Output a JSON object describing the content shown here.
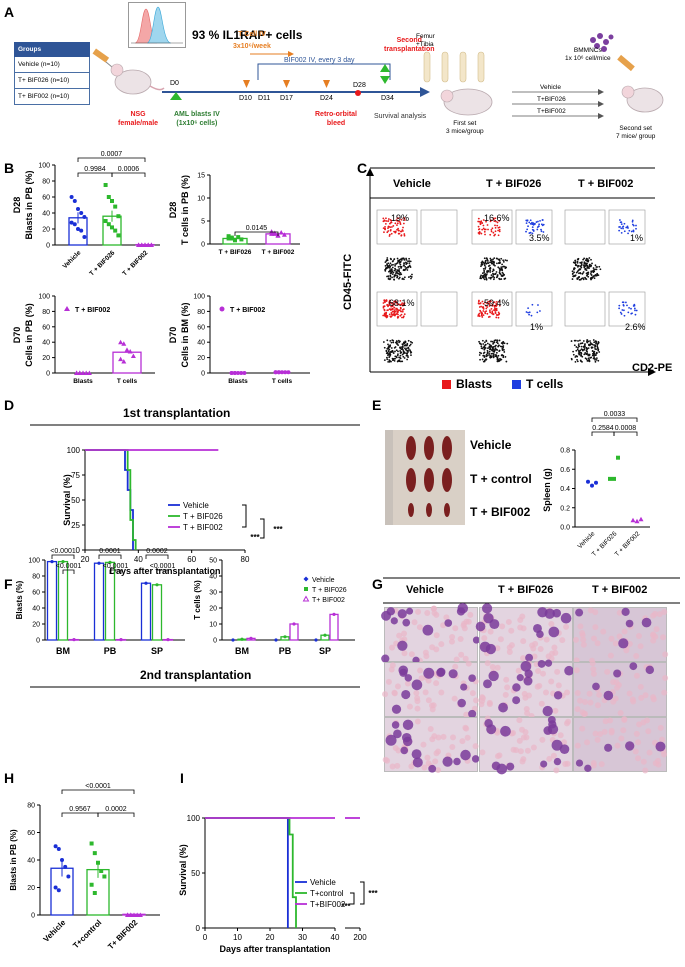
{
  "panels": {
    "A": {
      "letter": "A",
      "headline": "93 % IL1RAP+ cells",
      "groups_header": "Groups",
      "groups": [
        "Vehicle (n=10)",
        "T+ BIF026 (n=10)",
        "T+ BIF002 (n=10)"
      ],
      "mouse_label_1": "NSG",
      "mouse_label_2": "female/male",
      "aml_label_1": "AML blasts IV",
      "aml_label_2": "(1x10⁶ cells)",
      "tcell_label_1": "T Cell IV",
      "tcell_label_2": "3x10⁶/week",
      "bif_label": "BIF002 IV, every 3 day",
      "second_tx_1": "Second",
      "second_tx_2": "transplantation",
      "retro_1": "Retro-orbital",
      "retro_2": "bleed",
      "survival_analysis": "Survival analysis",
      "days": [
        "D0",
        "D10",
        "D11",
        "D17",
        "D24",
        "D28",
        "D34"
      ],
      "femur_1": "Femur",
      "femur_2": "+Tibia",
      "first_set_1": "First set",
      "first_set_2": "3 mice/group",
      "bmmnc_1": "BMMNCs",
      "bmmnc_2": "1x 10⁶ cell/mice",
      "arms": [
        "Vehicle",
        "T+BIF026",
        "T+BIF002"
      ],
      "second_set_1": "Second set",
      "second_set_2": "7 mice/ group"
    },
    "B": {
      "letter": "B"
    },
    "C": {
      "letter": "C"
    },
    "D": {
      "letter": "D"
    },
    "E": {
      "letter": "E"
    },
    "F": {
      "letter": "F"
    },
    "G": {
      "letter": "G"
    },
    "H": {
      "letter": "H"
    },
    "I": {
      "letter": "I"
    }
  },
  "second_transplant_heading": "2nd transplantation",
  "first_transplant_heading": "1st transplantation",
  "flow": {
    "columns": [
      "Vehicle",
      "T + BIF026",
      "T + BIF002"
    ],
    "row1_pcts": [
      "19%",
      "16.6%",
      "3.5%",
      "1%"
    ],
    "row2_pcts": [
      "68.1%",
      "59.4%",
      "1%",
      "2.6%"
    ],
    "yaxis": "CD45-FITC",
    "xaxis": "CD2-PE",
    "legend_blasts": "Blasts",
    "legend_tcells": "T cells",
    "blast_color": "#e8191b",
    "tcell_color": "#1f3ee0"
  },
  "spleen_photo": {
    "labels": [
      "Vehicle",
      "T + control",
      "T + BIF002"
    ]
  },
  "histology": {
    "columns": [
      "Vehicle",
      "T + BIF026",
      "T + BIF002"
    ]
  },
  "colors": {
    "vehicle": "#1a2fd6",
    "bif026": "#2db82d",
    "bif002": "#b72fd6"
  },
  "chart_data": [
    {
      "id": "B1",
      "type": "bar",
      "ylabel": "D28\nBlasts in PB (%)",
      "categories": [
        "Vehicle",
        "T + BIF026",
        "T + BIF002"
      ],
      "values": [
        34,
        36,
        0.5
      ],
      "errors": [
        7,
        7,
        0.3
      ],
      "points": [
        [
          60,
          55,
          45,
          40,
          35,
          28,
          26,
          20,
          18,
          10
        ],
        [
          75,
          60,
          55,
          48,
          36,
          30,
          26,
          22,
          18,
          12
        ],
        [
          0,
          0,
          0,
          0,
          0,
          0,
          0,
          0,
          0,
          0
        ]
      ],
      "ylim": [
        0,
        100
      ],
      "yticks": [
        0,
        20,
        40,
        60,
        80,
        100
      ],
      "pvalues": [
        "0.0007",
        "0.9984",
        "0.0006"
      ]
    },
    {
      "id": "B2",
      "type": "bar",
      "ylabel": "D28\nT cells in PB (%)",
      "categories": [
        "T + BIF026",
        "T + BIF002"
      ],
      "values": [
        1.2,
        2.2
      ],
      "errors": [
        0.2,
        0.3
      ],
      "ylim": [
        0,
        15
      ],
      "yticks": [
        0,
        5,
        10,
        15
      ],
      "pvalues": [
        "0.0145"
      ]
    },
    {
      "id": "B3",
      "type": "bar",
      "ylabel": "D70\nCells in PB (%)",
      "categories": [
        "Blasts",
        "T cells"
      ],
      "values": [
        0,
        27
      ],
      "errors": [
        0,
        6
      ],
      "ylim": [
        0,
        100
      ],
      "yticks": [
        0,
        20,
        40,
        60,
        80,
        100
      ],
      "legend": [
        "T + BIF002"
      ]
    },
    {
      "id": "B4",
      "type": "bar",
      "ylabel": "D70\nCells in BM (%)",
      "categories": [
        "Blasts",
        "T cells"
      ],
      "values": [
        0,
        1
      ],
      "errors": [
        0,
        0.3
      ],
      "ylim": [
        0,
        100
      ],
      "yticks": [
        0,
        20,
        40,
        60,
        80,
        100
      ],
      "legend": [
        "T + BIF002"
      ]
    },
    {
      "id": "D",
      "type": "line",
      "title": "1st transplantation",
      "xlabel": "Days after transplantation",
      "ylabel": "Survival (%)",
      "xlim": [
        20,
        80
      ],
      "ylim": [
        0,
        100
      ],
      "xticks": [
        20,
        40,
        60,
        80
      ],
      "yticks": [
        0,
        25,
        50,
        75,
        100
      ],
      "series": [
        {
          "name": "Vehicle",
          "steps": [
            [
              20,
              100
            ],
            [
              35,
              100
            ],
            [
              35,
              80
            ],
            [
              36,
              80
            ],
            [
              36,
              60
            ],
            [
              37,
              60
            ],
            [
              37,
              40
            ],
            [
              38,
              40
            ],
            [
              38,
              0
            ]
          ]
        },
        {
          "name": "T + BIF026",
          "steps": [
            [
              20,
              100
            ],
            [
              36,
              100
            ],
            [
              36,
              80
            ],
            [
              37,
              80
            ],
            [
              37,
              30
            ],
            [
              38,
              30
            ],
            [
              38,
              10
            ],
            [
              39,
              10
            ],
            [
              39,
              0
            ]
          ]
        },
        {
          "name": "T + BIF002",
          "steps": [
            [
              20,
              100
            ],
            [
              70,
              100
            ]
          ]
        }
      ],
      "sig": [
        "***",
        "***"
      ]
    },
    {
      "id": "E",
      "type": "scatter",
      "ylabel": "Spleen (g)",
      "categories": [
        "Vehicle",
        "T + BIF026",
        "T + BIF002"
      ],
      "points": [
        [
          0.47,
          0.43,
          0.46
        ],
        [
          0.5,
          0.5,
          0.72
        ],
        [
          0.07,
          0.06,
          0.08
        ]
      ],
      "ylim": [
        0,
        0.8
      ],
      "yticks": [
        0.0,
        0.2,
        0.4,
        0.6,
        0.8
      ],
      "pvalues": [
        "0.0033",
        "0.2584",
        "0.0008"
      ]
    },
    {
      "id": "F1",
      "type": "bar",
      "ylabel": "Blasts (%)",
      "categories": [
        "BM",
        "PB",
        "SP"
      ],
      "series": [
        {
          "name": "Vehicle",
          "values": [
            98,
            96,
            71
          ]
        },
        {
          "name": "T + BIF026",
          "values": [
            98,
            97,
            69
          ]
        },
        {
          "name": "T+ BIF002",
          "values": [
            0.5,
            0.5,
            0.5
          ]
        }
      ],
      "ylim": [
        0,
        100
      ],
      "yticks": [
        0,
        20,
        40,
        60,
        80,
        100
      ],
      "pvalues": [
        "<0.0001",
        "<0.0001",
        "0.0001",
        "<0.0001",
        "0.0002",
        "<0.0001"
      ]
    },
    {
      "id": "F2",
      "type": "bar",
      "ylabel": "T cells (%)",
      "categories": [
        "BM",
        "PB",
        "SP"
      ],
      "series": [
        {
          "name": "Vehicle",
          "values": [
            0,
            0,
            0
          ]
        },
        {
          "name": "T + BIF026",
          "values": [
            0.5,
            2,
            3
          ]
        },
        {
          "name": "T+ BIF002",
          "values": [
            1,
            10,
            16
          ]
        }
      ],
      "ylim": [
        0,
        50
      ],
      "yticks": [
        0,
        10,
        20,
        30,
        40,
        50
      ]
    },
    {
      "id": "H",
      "type": "bar",
      "ylabel": "Blasts in PB (%)",
      "categories": [
        "Vehicle",
        "T+control",
        "T+ BIF002"
      ],
      "values": [
        34,
        33,
        0.5
      ],
      "errors": [
        6,
        6,
        0.3
      ],
      "points": [
        [
          50,
          48,
          40,
          35,
          28,
          20,
          18
        ],
        [
          52,
          45,
          38,
          32,
          28,
          22,
          16
        ],
        [
          0,
          0,
          0,
          0,
          0,
          0,
          0
        ]
      ],
      "ylim": [
        0,
        80
      ],
      "yticks": [
        0,
        20,
        40,
        60,
        80
      ],
      "pvalues": [
        "<0.0001",
        "0.9567",
        "0.0002"
      ]
    },
    {
      "id": "I",
      "type": "line",
      "xlabel": "Days after transplantation",
      "ylabel": "Survival (%)",
      "xticks": [
        0,
        10,
        20,
        30,
        40,
        200
      ],
      "yticks": [
        0,
        50,
        100
      ],
      "ylim": [
        0,
        100
      ],
      "series": [
        {
          "name": "Vehicle",
          "steps": [
            [
              0,
              100
            ],
            [
              25.5,
              100
            ],
            [
              25.5,
              0
            ]
          ]
        },
        {
          "name": "T+control",
          "steps": [
            [
              0,
              100
            ],
            [
              26,
              100
            ],
            [
              26,
              85
            ],
            [
              27,
              85
            ],
            [
              27,
              28
            ],
            [
              28,
              28
            ],
            [
              28,
              0
            ]
          ]
        },
        {
          "name": "T+BIF002",
          "steps": [
            [
              0,
              100
            ],
            [
              40,
              100
            ],
            [
              200,
              100
            ]
          ]
        }
      ],
      "sig": [
        "***",
        "***"
      ]
    }
  ]
}
